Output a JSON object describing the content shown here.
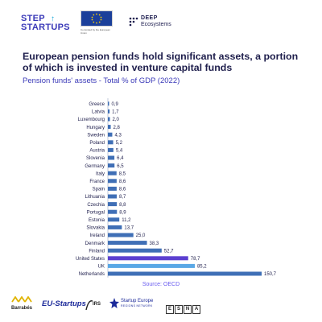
{
  "header": {
    "step_line1": "STEP",
    "step_line2": "STARTUPS",
    "eu_caption": "Co-funded by the European Union",
    "deep_line1": "DEEP",
    "deep_line2": "Ecosystems"
  },
  "title": "European pension funds hold significant assets, a portion of which is invested in venture capital funds",
  "subtitle": "Pension funds' assets - Total % of GDP (2022)",
  "source": "Source: OECD",
  "footer": {
    "barrabes": "Barrabés",
    "eu_startups": "EU-Startups",
    "irs": "IRS",
    "startup_europe": "Startup Europe",
    "startup_europe_sub": "REGIONS NETWORK",
    "esna": [
      "E",
      "S",
      "N",
      "A"
    ]
  },
  "colors": {
    "bar_default": "#3f6fb6",
    "bar_us": "#5b3fd0",
    "bar_uk": "#5aa8e6",
    "label": "#1e1e4c"
  },
  "chart_data": {
    "type": "bar",
    "orientation": "horizontal",
    "title": "Pension funds' assets - Total % of GDP (2022)",
    "categories": [
      "Greece",
      "Latvia",
      "Luxembourg",
      "Hungary",
      "Sweden",
      "Poland",
      "Austria",
      "Slovenia",
      "Germany",
      "Italy",
      "France",
      "Spain",
      "Lithuania",
      "Czechia",
      "Portugal",
      "Estonia",
      "Slovakia",
      "Ireland",
      "Denmark",
      "Finland",
      "United States",
      "UK",
      "Netherlands"
    ],
    "values": [
      0.9,
      1.7,
      2.0,
      2.8,
      4.3,
      5.2,
      5.4,
      6.4,
      6.5,
      8.5,
      8.6,
      8.6,
      8.7,
      8.8,
      8.9,
      11.2,
      13.7,
      25.0,
      38.3,
      52.7,
      78.7,
      85.2,
      150.7
    ],
    "value_labels": [
      "0,9",
      "1,7",
      "2,0",
      "2,8",
      "4,3",
      "5,2",
      "5,4",
      "6,4",
      "6,5",
      "8,5",
      "8,6",
      "8,6",
      "8,7",
      "8,8",
      "8,9",
      "11,2",
      "13,7",
      "25,0",
      "38,3",
      "52,7",
      "78,7",
      "85,2",
      "150,7"
    ],
    "highlight": {
      "United States": "#5b3fd0",
      "UK": "#5aa8e6"
    },
    "xlim": [
      0,
      150.7
    ],
    "grid": false,
    "legend": "none"
  }
}
